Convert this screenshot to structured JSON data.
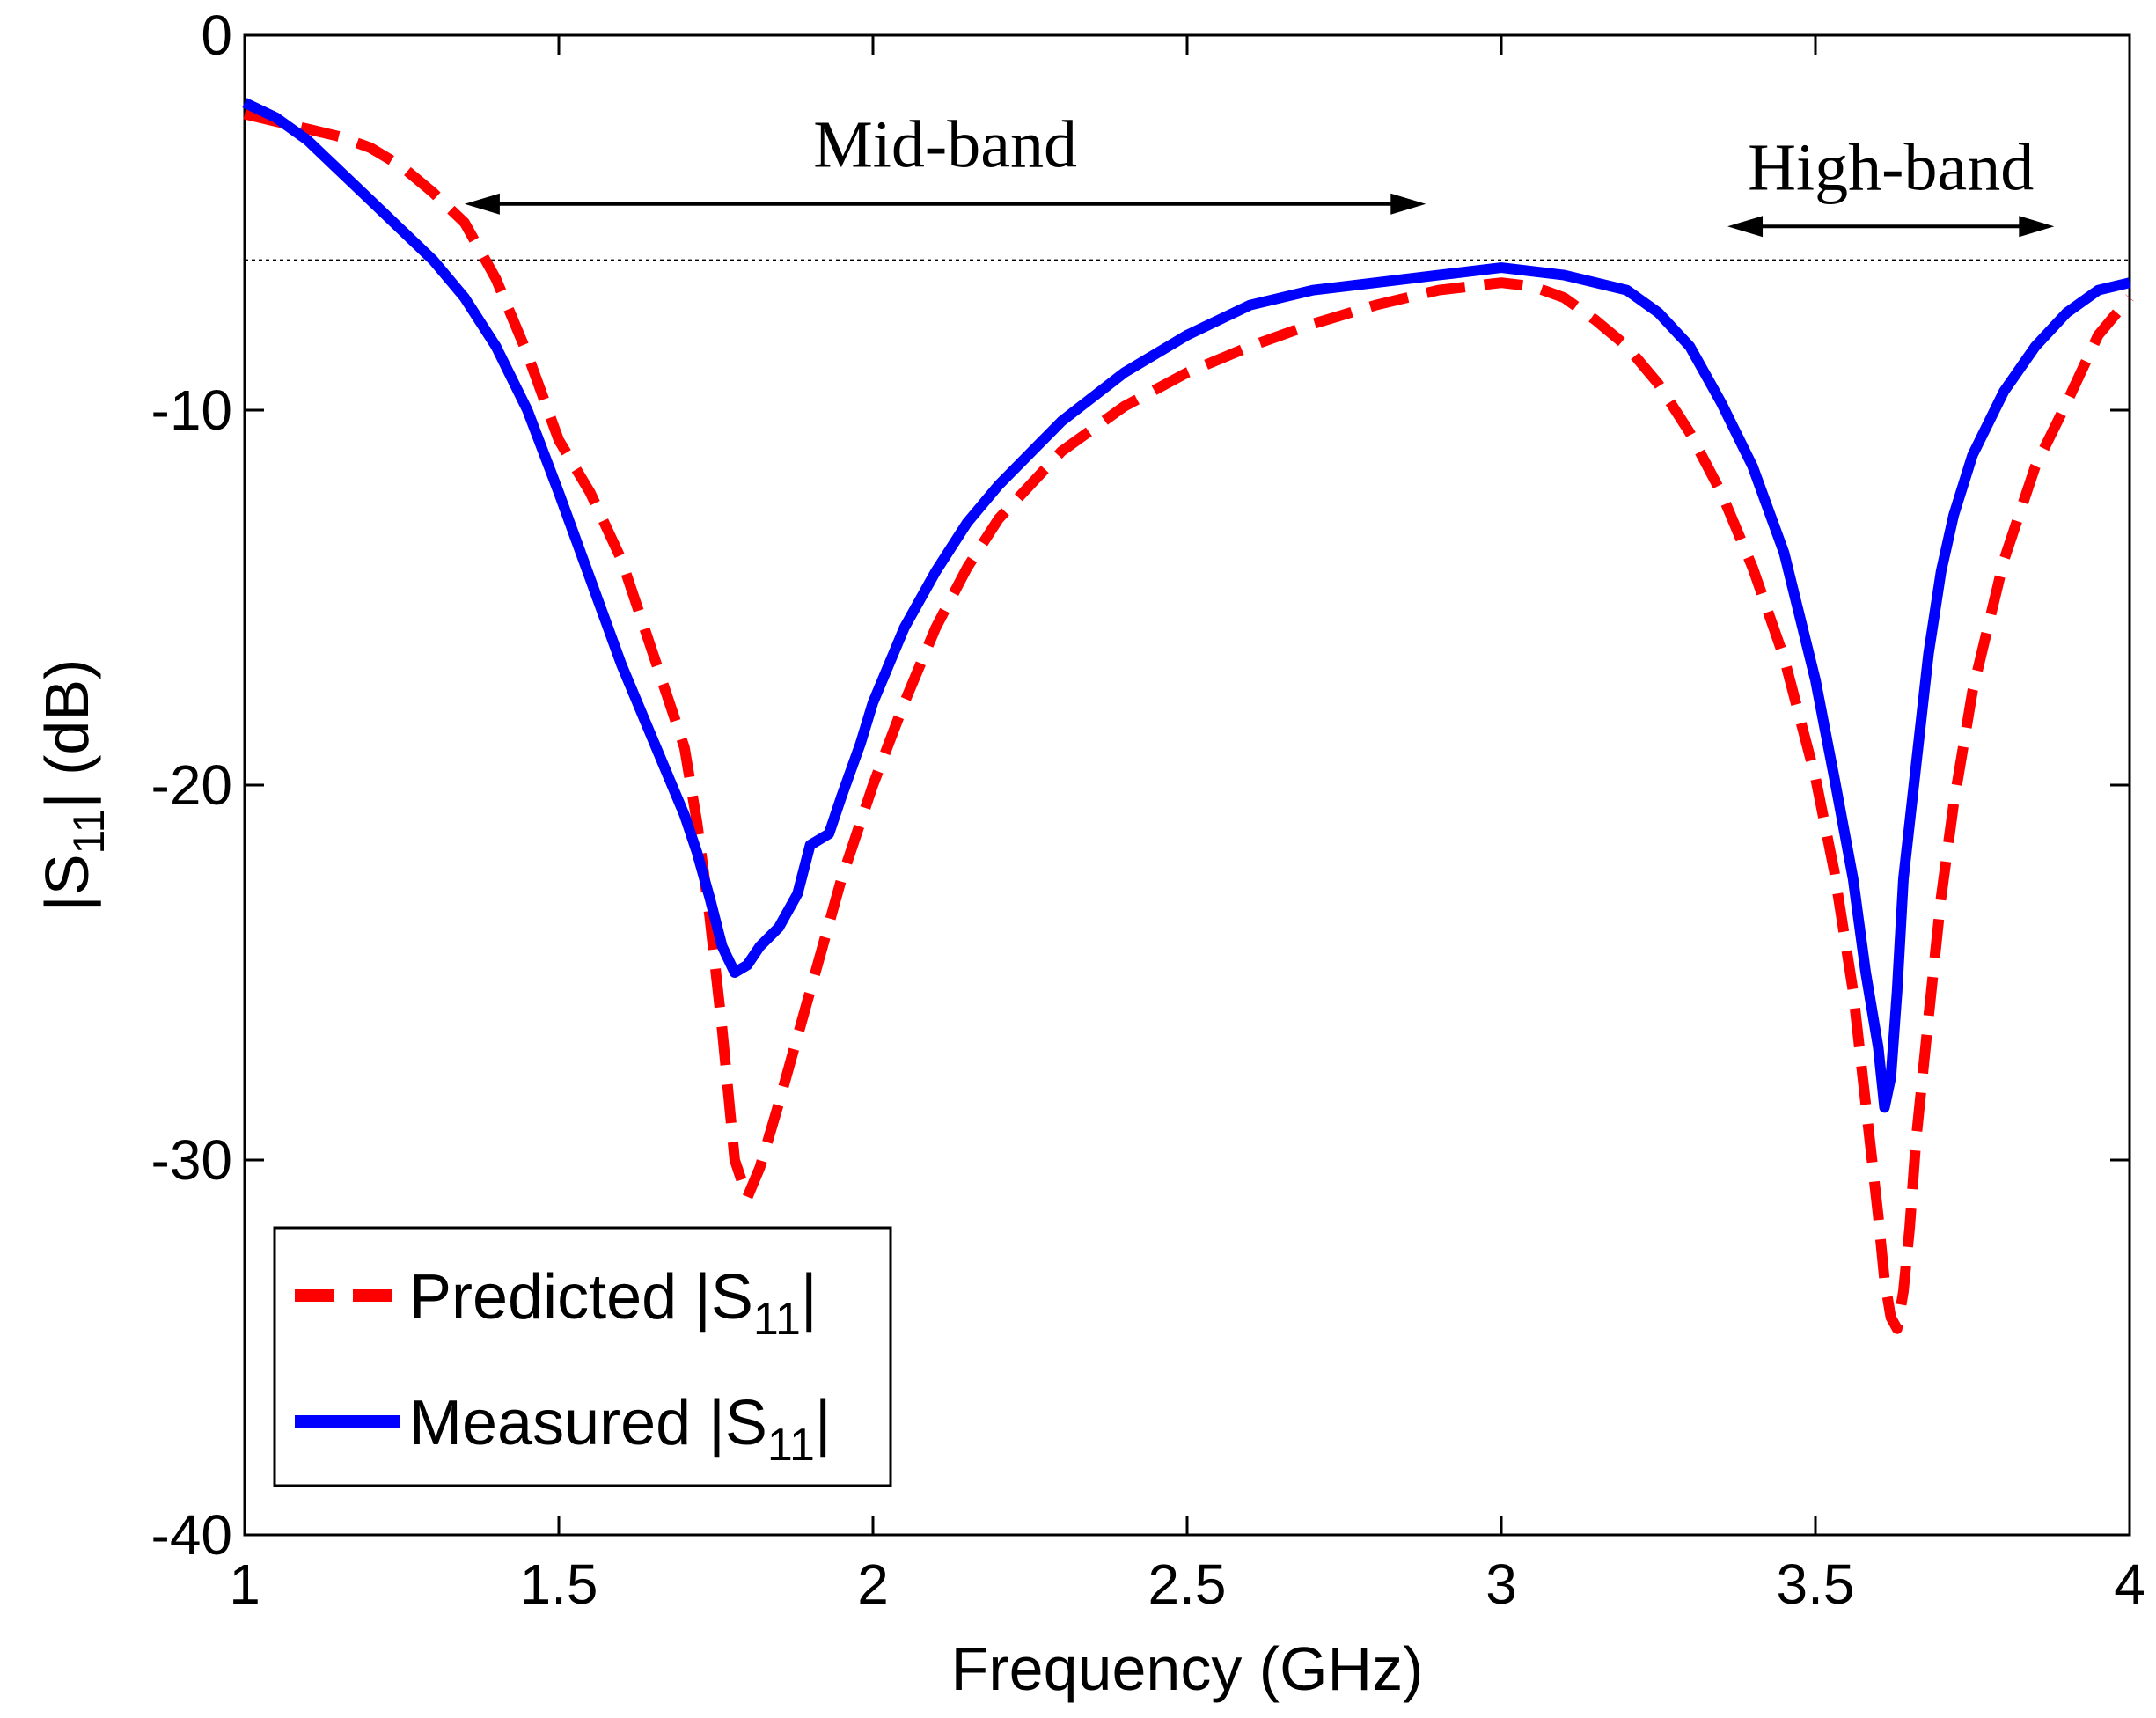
{
  "chart_data": {
    "type": "line",
    "xlabel": "Frequency (GHz)",
    "ylabel_prefix": "|S",
    "ylabel_sub": "11",
    "ylabel_suffix": "| (dB)",
    "xlim": [
      1,
      4
    ],
    "ylim": [
      -40,
      0
    ],
    "xticks": [
      "1",
      "1.5",
      "2",
      "2.5",
      "3",
      "3.5",
      "4"
    ],
    "xtick_values": [
      1,
      1.5,
      2,
      2.5,
      3,
      3.5,
      4
    ],
    "yticks": [
      "0",
      "-10",
      "-20",
      "-30",
      "-40"
    ],
    "ytick_values": [
      0,
      -10,
      -20,
      -30,
      -40
    ],
    "reference_line": {
      "y": -6,
      "style": "dotted"
    },
    "annotations": [
      {
        "label": "Mid-band",
        "x_start": 1.35,
        "x_end": 2.88,
        "y": -4.5
      },
      {
        "label": "High-band",
        "x_start": 3.36,
        "x_end": 3.88,
        "y": -5.1
      }
    ],
    "legend": {
      "position": "bottom-left",
      "entries": [
        {
          "prefix": "Predicted |S",
          "sub": "11",
          "suffix": "|",
          "series": 0
        },
        {
          "prefix": "Measured |S",
          "sub": "11",
          "suffix": "|",
          "series": 1
        }
      ]
    },
    "series": [
      {
        "name": "Predicted |S11|",
        "color": "#ff0000",
        "dash": "dashed",
        "x": [
          1.0,
          1.05,
          1.1,
          1.15,
          1.2,
          1.25,
          1.3,
          1.35,
          1.4,
          1.45,
          1.5,
          1.55,
          1.6,
          1.65,
          1.7,
          1.72,
          1.74,
          1.76,
          1.78,
          1.8,
          1.82,
          1.85,
          1.9,
          1.95,
          2.0,
          2.05,
          2.1,
          2.15,
          2.2,
          2.3,
          2.4,
          2.5,
          2.6,
          2.7,
          2.8,
          2.9,
          3.0,
          3.05,
          3.1,
          3.15,
          3.2,
          3.25,
          3.3,
          3.35,
          3.4,
          3.45,
          3.5,
          3.53,
          3.56,
          3.58,
          3.6,
          3.61,
          3.62,
          3.63,
          3.64,
          3.65,
          3.66,
          3.68,
          3.7,
          3.72,
          3.75,
          3.8,
          3.85,
          3.9,
          3.95,
          4.0
        ],
        "y": [
          -2.1,
          -2.3,
          -2.5,
          -2.7,
          -3.0,
          -3.5,
          -4.2,
          -5.0,
          -6.5,
          -8.5,
          -10.8,
          -12.2,
          -14.0,
          -16.5,
          -19.0,
          -21.0,
          -23.5,
          -26.5,
          -30.0,
          -31.0,
          -30.2,
          -28.5,
          -25.5,
          -22.5,
          -20.0,
          -17.8,
          -15.8,
          -14.2,
          -12.9,
          -11.1,
          -9.9,
          -9.0,
          -8.3,
          -7.7,
          -7.2,
          -6.8,
          -6.6,
          -6.7,
          -7.0,
          -7.6,
          -8.3,
          -9.3,
          -10.6,
          -12.2,
          -14.2,
          -16.6,
          -19.8,
          -22.3,
          -25.5,
          -28.5,
          -31.5,
          -33.2,
          -34.2,
          -34.5,
          -33.5,
          -31.8,
          -29.5,
          -26.2,
          -23.0,
          -20.5,
          -17.5,
          -14.0,
          -11.5,
          -9.8,
          -8.0,
          -7.0
        ]
      },
      {
        "name": "Measured |S11|",
        "color": "#0000ff",
        "dash": "solid",
        "x": [
          1.0,
          1.05,
          1.1,
          1.15,
          1.2,
          1.25,
          1.3,
          1.35,
          1.4,
          1.45,
          1.5,
          1.55,
          1.6,
          1.65,
          1.7,
          1.72,
          1.74,
          1.76,
          1.78,
          1.8,
          1.82,
          1.85,
          1.88,
          1.9,
          1.93,
          1.95,
          1.98,
          2.0,
          2.05,
          2.1,
          2.15,
          2.2,
          2.3,
          2.4,
          2.5,
          2.6,
          2.7,
          2.8,
          2.9,
          3.0,
          3.1,
          3.2,
          3.25,
          3.3,
          3.35,
          3.4,
          3.45,
          3.5,
          3.53,
          3.56,
          3.58,
          3.6,
          3.61,
          3.62,
          3.63,
          3.64,
          3.66,
          3.68,
          3.7,
          3.72,
          3.75,
          3.8,
          3.85,
          3.9,
          3.95,
          4.0
        ],
        "y": [
          -1.8,
          -2.2,
          -2.8,
          -3.6,
          -4.4,
          -5.2,
          -6.0,
          -7.0,
          -8.3,
          -10.0,
          -12.2,
          -14.5,
          -16.8,
          -18.8,
          -20.8,
          -21.8,
          -23.0,
          -24.3,
          -25.0,
          -24.8,
          -24.3,
          -23.8,
          -22.9,
          -21.6,
          -21.3,
          -20.3,
          -18.9,
          -17.8,
          -15.8,
          -14.3,
          -13.0,
          -12.0,
          -10.3,
          -9.0,
          -8.0,
          -7.2,
          -6.8,
          -6.6,
          -6.4,
          -6.2,
          -6.4,
          -6.8,
          -7.4,
          -8.3,
          -9.8,
          -11.5,
          -13.8,
          -17.2,
          -19.8,
          -22.5,
          -25.0,
          -27.0,
          -28.6,
          -27.8,
          -25.5,
          -22.5,
          -19.5,
          -16.5,
          -14.3,
          -12.8,
          -11.2,
          -9.5,
          -8.3,
          -7.4,
          -6.8,
          -6.6
        ]
      }
    ]
  }
}
